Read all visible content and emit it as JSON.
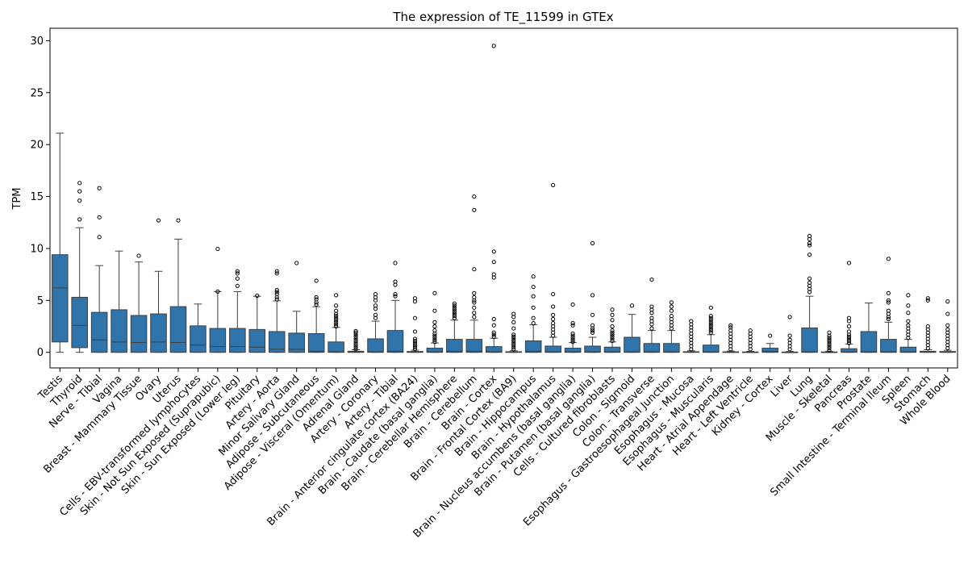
{
  "chart_data": {
    "type": "box",
    "title": "The expression of TE_11599 in GTEx",
    "xlabel": "",
    "ylabel": "TPM",
    "ylim": [
      -1.5,
      31.2
    ],
    "yticks": [
      0,
      5,
      10,
      15,
      20,
      25,
      30
    ],
    "grid": false,
    "legend": "none",
    "box_color": "#2f74ab",
    "line_color": "#3f3f3f",
    "categories": [
      "Testis",
      "Thyroid",
      "Nerve - Tibial",
      "Vagina",
      "Breast - Mammary Tissue",
      "Ovary",
      "Uterus",
      "Cells - EBV-transformed lymphocytes",
      "Skin - Not Sun Exposed (Suprapubic)",
      "Skin - Sun Exposed (Lower leg)",
      "Pituitary",
      "Artery - Aorta",
      "Minor Salivary Gland",
      "Adipose - Subcutaneous",
      "Adipose - Visceral (Omentum)",
      "Adrenal Gland",
      "Artery - Coronary",
      "Artery - Tibial",
      "Brain - Anterior cingulate cortex (BA24)",
      "Brain - Caudate (basal ganglia)",
      "Brain - Cerebellar Hemisphere",
      "Brain - Cerebellum",
      "Brain - Cortex",
      "Brain - Frontal Cortex (BA9)",
      "Brain - Hippocampus",
      "Brain - Hypothalamus",
      "Brain - Nucleus accumbens (basal ganglia)",
      "Brain - Putamen (basal ganglia)",
      "Cells - Cultured fibroblasts",
      "Colon - Sigmoid",
      "Colon - Transverse",
      "Esophagus - Gastroesophageal Junction",
      "Esophagus - Mucosa",
      "Esophagus - Muscularis",
      "Heart - Atrial Appendage",
      "Heart - Left Ventricle",
      "Kidney - Cortex",
      "Liver",
      "Lung",
      "Muscle - Skeletal",
      "Pancreas",
      "Prostate",
      "Small Intestine - Terminal Ileum",
      "Spleen",
      "Stomach",
      "Whole Blood"
    ],
    "boxes": [
      {
        "whislo": 0,
        "q1": 1.0,
        "med": 6.2,
        "q3": 9.4,
        "whishi": 21.1,
        "fliers": []
      },
      {
        "whislo": 0,
        "q1": 0.45,
        "med": 2.6,
        "q3": 5.3,
        "whishi": 12.0,
        "fliers": [
          12.8,
          14.6,
          15.5,
          16.3
        ]
      },
      {
        "whislo": 0,
        "q1": 0,
        "med": 1.2,
        "q3": 3.85,
        "whishi": 8.35,
        "fliers": [
          11.1,
          13.0,
          15.8
        ]
      },
      {
        "whislo": 0,
        "q1": 0,
        "med": 1.0,
        "q3": 4.1,
        "whishi": 9.75,
        "fliers": []
      },
      {
        "whislo": 0,
        "q1": 0,
        "med": 0.95,
        "q3": 3.55,
        "whishi": 8.7,
        "fliers": [
          9.3
        ]
      },
      {
        "whislo": 0,
        "q1": 0,
        "med": 1.0,
        "q3": 3.7,
        "whishi": 7.8,
        "fliers": [
          12.7
        ]
      },
      {
        "whislo": 0,
        "q1": 0,
        "med": 0.95,
        "q3": 4.4,
        "whishi": 10.9,
        "fliers": [
          12.7
        ]
      },
      {
        "whislo": 0,
        "q1": 0,
        "med": 0.7,
        "q3": 2.55,
        "whishi": 4.65,
        "fliers": []
      },
      {
        "whislo": 0,
        "q1": 0,
        "med": 0.55,
        "q3": 2.3,
        "whishi": 5.85,
        "fliers": [
          5.85,
          9.95
        ]
      },
      {
        "whislo": 0,
        "q1": 0,
        "med": 0.55,
        "q3": 2.3,
        "whishi": 5.85,
        "fliers": [
          6.4,
          7.1,
          7.6,
          7.8
        ]
      },
      {
        "whislo": 0,
        "q1": 0,
        "med": 0.5,
        "q3": 2.2,
        "whishi": 5.4,
        "fliers": [
          5.45
        ]
      },
      {
        "whislo": 0,
        "q1": 0,
        "med": 0.3,
        "q3": 2.0,
        "whishi": 4.95,
        "fliers": [
          5.1,
          5.3,
          5.6,
          5.8,
          6.0,
          7.6,
          7.8
        ]
      },
      {
        "whislo": 0,
        "q1": 0,
        "med": 0.3,
        "q3": 1.85,
        "whishi": 3.95,
        "fliers": [
          8.6
        ]
      },
      {
        "whislo": 0,
        "q1": 0,
        "med": 0.1,
        "q3": 1.8,
        "whishi": 4.4,
        "fliers": [
          4.6,
          4.8,
          5.1,
          5.3,
          6.9
        ]
      },
      {
        "whislo": 0,
        "q1": 0,
        "med": 0.05,
        "q3": 1.0,
        "whishi": 2.4,
        "fliers": [
          2.5,
          2.7,
          2.9,
          3.1,
          3.3,
          3.5,
          3.7,
          4.0,
          4.5,
          5.5
        ]
      },
      {
        "whislo": 0,
        "q1": 0,
        "med": 0.02,
        "q3": 0.1,
        "whishi": 0.25,
        "fliers": [
          0.3,
          0.5,
          0.7,
          0.9,
          1.1,
          1.3,
          1.5,
          1.7,
          1.9,
          2.05
        ]
      },
      {
        "whislo": 0,
        "q1": 0,
        "med": 0.05,
        "q3": 1.3,
        "whishi": 3.0,
        "fliers": [
          3.3,
          3.6,
          4.2,
          4.5,
          5.0,
          5.3,
          5.6
        ]
      },
      {
        "whislo": 0,
        "q1": 0,
        "med": 0.1,
        "q3": 2.1,
        "whishi": 5.0,
        "fliers": [
          5.4,
          5.6,
          6.5,
          6.8,
          8.6
        ]
      },
      {
        "whislo": 0,
        "q1": 0,
        "med": 0.02,
        "q3": 0.08,
        "whishi": 0.2,
        "fliers": [
          0.3,
          0.5,
          0.7,
          0.9,
          1.1,
          1.3,
          2.0,
          3.3,
          4.9,
          5.2
        ]
      },
      {
        "whislo": 0,
        "q1": 0,
        "med": 0.05,
        "q3": 0.4,
        "whishi": 0.9,
        "fliers": [
          1.0,
          1.2,
          1.4,
          1.6,
          1.8,
          2.1,
          2.5,
          2.9,
          4.0,
          5.7
        ]
      },
      {
        "whislo": 0,
        "q1": 0,
        "med": 0.1,
        "q3": 1.25,
        "whishi": 3.1,
        "fliers": [
          3.3,
          3.5,
          3.7,
          3.9,
          4.1,
          4.3,
          4.5,
          4.7
        ]
      },
      {
        "whislo": 0,
        "q1": 0,
        "med": 0.1,
        "q3": 1.25,
        "whishi": 3.1,
        "fliers": [
          3.4,
          3.8,
          4.3,
          4.8,
          5.0,
          5.3,
          5.7,
          8.0,
          13.7,
          15.0
        ]
      },
      {
        "whislo": 0,
        "q1": 0,
        "med": 0.05,
        "q3": 0.55,
        "whishi": 1.35,
        "fliers": [
          1.5,
          1.7,
          1.9,
          2.6,
          3.2,
          7.2,
          7.5,
          8.7,
          9.7,
          29.5
        ]
      },
      {
        "whislo": 0,
        "q1": 0,
        "med": 0.02,
        "q3": 0.06,
        "whishi": 0.15,
        "fliers": [
          0.3,
          0.5,
          0.7,
          0.9,
          1.1,
          1.3,
          1.5,
          1.7,
          2.3,
          2.9,
          3.4,
          3.7
        ]
      },
      {
        "whislo": 0,
        "q1": 0,
        "med": 0.1,
        "q3": 1.1,
        "whishi": 2.65,
        "fliers": [
          2.8,
          3.3,
          4.3,
          5.4,
          6.3,
          7.3
        ]
      },
      {
        "whislo": 0,
        "q1": 0,
        "med": 0.05,
        "q3": 0.6,
        "whishi": 1.45,
        "fliers": [
          1.6,
          1.9,
          2.2,
          2.5,
          2.8,
          3.2,
          3.6,
          4.4,
          5.6,
          16.1
        ]
      },
      {
        "whislo": 0,
        "q1": 0,
        "med": 0.05,
        "q3": 0.4,
        "whishi": 0.95,
        "fliers": [
          1.0,
          1.2,
          1.4,
          1.6,
          1.8,
          2.6,
          2.8,
          4.6
        ]
      },
      {
        "whislo": 0,
        "q1": 0,
        "med": 0.05,
        "q3": 0.6,
        "whishi": 1.45,
        "fliers": [
          1.9,
          2.1,
          2.3,
          2.6,
          3.6,
          5.5,
          10.5
        ]
      },
      {
        "whislo": 0,
        "q1": 0,
        "med": 0.05,
        "q3": 0.5,
        "whishi": 1.0,
        "fliers": [
          1.1,
          1.3,
          1.5,
          1.7,
          1.9,
          2.1,
          2.5,
          3.1,
          3.6,
          4.1
        ]
      },
      {
        "whislo": 0,
        "q1": 0,
        "med": 0.05,
        "q3": 1.45,
        "whishi": 3.65,
        "fliers": [
          4.5
        ]
      },
      {
        "whislo": 0,
        "q1": 0,
        "med": 0.05,
        "q3": 0.85,
        "whishi": 2.1,
        "fliers": [
          2.3,
          2.7,
          3.0,
          3.3,
          3.8,
          4.1,
          4.4,
          7.0
        ]
      },
      {
        "whislo": 0,
        "q1": 0,
        "med": 0.05,
        "q3": 0.85,
        "whishi": 2.1,
        "fliers": [
          2.3,
          2.6,
          2.9,
          3.2,
          3.5,
          4.0,
          4.4,
          4.8
        ]
      },
      {
        "whislo": 0,
        "q1": 0,
        "med": 0.02,
        "q3": 0.06,
        "whishi": 0.15,
        "fliers": [
          0.3,
          0.6,
          0.9,
          1.2,
          1.5,
          1.8,
          2.1,
          2.4,
          2.7,
          3.0
        ]
      },
      {
        "whislo": 0,
        "q1": 0,
        "med": 0.05,
        "q3": 0.7,
        "whishi": 1.7,
        "fliers": [
          1.9,
          2.1,
          2.3,
          2.5,
          2.7,
          2.9,
          3.1,
          3.3,
          3.5,
          4.3
        ]
      },
      {
        "whislo": 0,
        "q1": 0,
        "med": 0.02,
        "q3": 0.05,
        "whishi": 0.12,
        "fliers": [
          0.3,
          0.6,
          0.9,
          1.2,
          1.5,
          1.8,
          2.1,
          2.4,
          2.6
        ]
      },
      {
        "whislo": 0,
        "q1": 0,
        "med": 0.01,
        "q3": 0.04,
        "whishi": 0.1,
        "fliers": [
          0.3,
          0.6,
          0.9,
          1.2,
          1.5,
          1.8,
          2.1
        ]
      },
      {
        "whislo": 0,
        "q1": 0,
        "med": 0.1,
        "q3": 0.4,
        "whishi": 0.85,
        "fliers": [
          1.6
        ]
      },
      {
        "whislo": 0,
        "q1": 0,
        "med": 0.01,
        "q3": 0.03,
        "whishi": 0.08,
        "fliers": [
          0.3,
          0.6,
          0.9,
          1.2,
          1.6,
          3.4
        ]
      },
      {
        "whislo": 0,
        "q1": 0,
        "med": 0.05,
        "q3": 2.35,
        "whishi": 5.4,
        "fliers": [
          5.8,
          6.1,
          6.4,
          6.7,
          7.1,
          9.4,
          10.3,
          10.5,
          10.9,
          11.2
        ]
      },
      {
        "whislo": 0,
        "q1": 0,
        "med": 0.01,
        "q3": 0.04,
        "whishi": 0.1,
        "fliers": [
          0.2,
          0.4,
          0.6,
          0.8,
          1.0,
          1.2,
          1.4,
          1.6,
          1.9
        ]
      },
      {
        "whislo": 0,
        "q1": 0,
        "med": 0.05,
        "q3": 0.35,
        "whishi": 0.8,
        "fliers": [
          0.9,
          1.1,
          1.3,
          1.5,
          1.7,
          2.0,
          2.5,
          3.0,
          3.3,
          8.6
        ]
      },
      {
        "whislo": 0,
        "q1": 0,
        "med": 0.05,
        "q3": 2.0,
        "whishi": 4.75,
        "fliers": []
      },
      {
        "whislo": 0,
        "q1": 0,
        "med": 0.05,
        "q3": 1.25,
        "whishi": 2.9,
        "fliers": [
          3.2,
          3.4,
          3.7,
          4.0,
          4.8,
          5.0,
          5.7,
          9.0
        ]
      },
      {
        "whislo": 0,
        "q1": 0,
        "med": 0.05,
        "q3": 0.5,
        "whishi": 1.25,
        "fliers": [
          1.4,
          1.7,
          2.0,
          2.3,
          2.6,
          3.0,
          3.8,
          4.5,
          5.5
        ]
      },
      {
        "whislo": 0,
        "q1": 0,
        "med": 0.02,
        "q3": 0.1,
        "whishi": 0.25,
        "fliers": [
          0.4,
          0.7,
          1.0,
          1.3,
          1.6,
          1.9,
          2.2,
          2.5,
          5.0,
          5.2
        ]
      },
      {
        "whislo": 0,
        "q1": 0,
        "med": 0.02,
        "q3": 0.08,
        "whishi": 0.2,
        "fliers": [
          0.4,
          0.7,
          1.0,
          1.3,
          1.6,
          1.9,
          2.2,
          2.6,
          3.7,
          4.9
        ]
      }
    ]
  }
}
